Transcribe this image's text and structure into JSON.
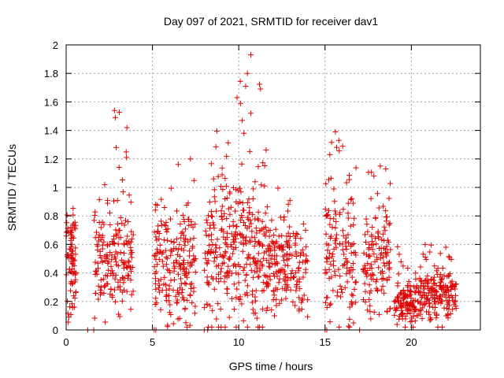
{
  "chart_data": {
    "type": "scatter",
    "title": "Day 097 of 2021, SRMTID for receiver dav1",
    "xlabel": "GPS time / hours",
    "ylabel": "SRMTID / TECUs",
    "xlim": [
      0,
      24
    ],
    "ylim": [
      0,
      2
    ],
    "x_ticks": [
      0,
      5,
      10,
      15,
      20
    ],
    "x_tick_labels": [
      "0",
      "5",
      "10",
      "15",
      "20"
    ],
    "y_ticks": [
      0,
      0.2,
      0.4,
      0.6,
      0.8,
      1,
      1.2,
      1.4,
      1.6,
      1.8,
      2
    ],
    "y_tick_labels": [
      "0",
      "0.2",
      "0.4",
      "0.6",
      "0.8",
      "1",
      "1.2",
      "1.4",
      "1.6",
      "1.8",
      "2"
    ],
    "grid": true,
    "marker": "+",
    "color": "#e00000",
    "clusters": [
      {
        "x_range": [
          0.0,
          0.6
        ],
        "y_center": 0.45,
        "y_spread": 0.2,
        "n": 80,
        "y_max": 0.88
      },
      {
        "x_range": [
          1.6,
          3.9
        ],
        "y_center": 0.5,
        "y_spread": 0.18,
        "n": 180,
        "y_max": 1.55
      },
      {
        "x_range": [
          5.1,
          7.5
        ],
        "y_center": 0.45,
        "y_spread": 0.2,
        "n": 200,
        "y_max": 1.2
      },
      {
        "x_range": [
          8.0,
          11.6
        ],
        "y_center": 0.55,
        "y_spread": 0.28,
        "n": 320,
        "y_max": 1.93
      },
      {
        "x_range": [
          11.6,
          14.0
        ],
        "y_center": 0.45,
        "y_spread": 0.15,
        "n": 180,
        "y_max": 1.05
      },
      {
        "x_range": [
          15.0,
          16.8
        ],
        "y_center": 0.55,
        "y_spread": 0.25,
        "n": 140,
        "y_max": 1.4
      },
      {
        "x_range": [
          17.2,
          18.8
        ],
        "y_center": 0.5,
        "y_spread": 0.2,
        "n": 130,
        "y_max": 1.15
      },
      {
        "x_range": [
          19.0,
          20.8
        ],
        "y_center": 0.22,
        "y_spread": 0.09,
        "n": 150,
        "y_max": 0.6
      },
      {
        "x_range": [
          20.8,
          22.6
        ],
        "y_center": 0.24,
        "y_spread": 0.09,
        "n": 150,
        "y_max": 0.6
      }
    ],
    "highlights": [
      {
        "x": 2.8,
        "y": 1.54
      },
      {
        "x": 2.85,
        "y": 1.49
      },
      {
        "x": 2.9,
        "y": 1.28
      },
      {
        "x": 3.5,
        "y": 1.21
      },
      {
        "x": 7.2,
        "y": 1.2
      },
      {
        "x": 10.7,
        "y": 1.93
      },
      {
        "x": 10.5,
        "y": 1.8
      },
      {
        "x": 10.4,
        "y": 1.71
      },
      {
        "x": 9.9,
        "y": 1.63
      },
      {
        "x": 10.1,
        "y": 1.59
      },
      {
        "x": 10.7,
        "y": 1.52
      },
      {
        "x": 10.2,
        "y": 1.47
      },
      {
        "x": 10.3,
        "y": 1.38
      },
      {
        "x": 15.6,
        "y": 1.39
      },
      {
        "x": 15.8,
        "y": 1.33
      },
      {
        "x": 18.2,
        "y": 1.15
      },
      {
        "x": 20.8,
        "y": 0.6
      },
      {
        "x": 22.0,
        "y": 0.58
      }
    ],
    "zero_markers": [
      1.25,
      1.6,
      5.1,
      5.2,
      8.0,
      8.2,
      15.0,
      15.1,
      17.0
    ]
  }
}
